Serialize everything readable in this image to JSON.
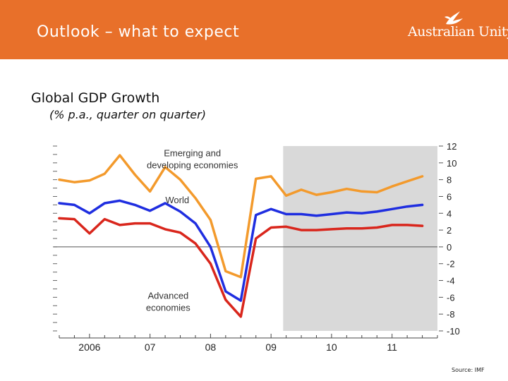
{
  "header": {
    "title": "Outlook – what to expect",
    "brand": "Australian Unity",
    "brand_icon": "bird-logo-icon",
    "background_color": "#e8702a"
  },
  "slide": {
    "subtitle": "Global GDP Growth",
    "subtitle_note": "(% p.a., quarter on quarter)",
    "source": "Source: IMF"
  },
  "chart_data": {
    "type": "line",
    "title": "Global GDP Growth",
    "ylabel": "% p.a., quarter on quarter",
    "xlabel": "",
    "ylim": [
      -10,
      12
    ],
    "yticks": [
      12,
      10,
      8,
      6,
      4,
      2,
      0,
      -2,
      -4,
      -6,
      -8,
      -10
    ],
    "xlim": [
      2005.5,
      2011.75
    ],
    "xticks": [
      {
        "label": "2006",
        "x": 2006.0
      },
      {
        "label": "07",
        "x": 2007.0
      },
      {
        "label": "08",
        "x": 2008.0
      },
      {
        "label": "09",
        "x": 2009.0
      },
      {
        "label": "10",
        "x": 2010.0
      },
      {
        "label": "11",
        "x": 2011.0
      }
    ],
    "shaded_forecast_region": [
      2009.2,
      2011.75
    ],
    "shade_color": "#d9d9d9",
    "zero_line": true,
    "series": [
      {
        "name": "Emerging and developing economies",
        "label_lines": [
          "Emerging and",
          "developing economies"
        ],
        "color": "#f39a2c",
        "x": [
          2005.5,
          2005.75,
          2006.0,
          2006.25,
          2006.5,
          2006.75,
          2007.0,
          2007.25,
          2007.5,
          2007.75,
          2008.0,
          2008.25,
          2008.5,
          2008.75,
          2009.0,
          2009.25,
          2009.5,
          2009.75,
          2010.0,
          2010.25,
          2010.5,
          2010.75,
          2011.0,
          2011.25,
          2011.5
        ],
        "y": [
          8.0,
          7.7,
          7.9,
          8.7,
          10.9,
          8.6,
          6.6,
          9.5,
          8.0,
          5.8,
          3.2,
          -2.9,
          -3.6,
          8.1,
          8.4,
          6.1,
          6.8,
          6.2,
          6.5,
          6.9,
          6.6,
          6.5,
          7.2,
          7.8,
          8.4
        ]
      },
      {
        "name": "World",
        "label_lines": [
          "World"
        ],
        "color": "#1f2ee0",
        "x": [
          2005.5,
          2005.75,
          2006.0,
          2006.25,
          2006.5,
          2006.75,
          2007.0,
          2007.25,
          2007.5,
          2007.75,
          2008.0,
          2008.25,
          2008.5,
          2008.75,
          2009.0,
          2009.25,
          2009.5,
          2009.75,
          2010.0,
          2010.25,
          2010.5,
          2010.75,
          2011.0,
          2011.25,
          2011.5
        ],
        "y": [
          5.2,
          5.0,
          4.0,
          5.2,
          5.5,
          5.0,
          4.3,
          5.2,
          4.2,
          2.8,
          0.0,
          -5.3,
          -6.4,
          3.8,
          4.5,
          3.9,
          3.9,
          3.7,
          3.9,
          4.1,
          4.0,
          4.2,
          4.5,
          4.8,
          5.0
        ]
      },
      {
        "name": "Advanced economies",
        "label_lines": [
          "Advanced",
          "economies"
        ],
        "color": "#d9261c",
        "x": [
          2005.5,
          2005.75,
          2006.0,
          2006.25,
          2006.5,
          2006.75,
          2007.0,
          2007.25,
          2007.5,
          2007.75,
          2008.0,
          2008.25,
          2008.5,
          2008.75,
          2009.0,
          2009.25,
          2009.5,
          2009.75,
          2010.0,
          2010.25,
          2010.5,
          2010.75,
          2011.0,
          2011.25,
          2011.5
        ],
        "y": [
          3.4,
          3.3,
          1.6,
          3.3,
          2.6,
          2.8,
          2.8,
          2.1,
          1.7,
          0.4,
          -2.0,
          -6.3,
          -8.3,
          1.0,
          2.3,
          2.4,
          2.0,
          2.0,
          2.1,
          2.2,
          2.2,
          2.3,
          2.6,
          2.6,
          2.5
        ]
      }
    ],
    "annotations": [
      {
        "text_lines": [
          "Emerging and",
          "developing economies"
        ],
        "series": "Emerging and developing economies",
        "anchor": [
          2007.7,
          10.8
        ]
      },
      {
        "text_lines": [
          "World"
        ],
        "series": "World",
        "anchor": [
          2007.45,
          5.2
        ]
      },
      {
        "text_lines": [
          "Advanced",
          "economies"
        ],
        "series": "Advanced economies",
        "anchor": [
          2007.3,
          -6.2
        ]
      }
    ]
  }
}
